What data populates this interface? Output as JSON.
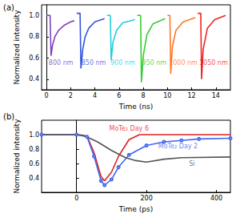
{
  "chart_data": [
    {
      "type": "line",
      "panel_label": "(a)",
      "xlabel": "Time (ns)",
      "ylabel": "Normalized intensity",
      "xlim": [
        -0.4,
        15.2
      ],
      "xticks": [
        0,
        2,
        4,
        6,
        8,
        10,
        12,
        14
      ],
      "ylim": [
        0.3,
        1.1
      ],
      "yticks": [
        0.4,
        0.6,
        0.8,
        {
          "value": 1,
          "label": "1.0"
        }
      ],
      "grid": false,
      "series": [
        {
          "name": "800 nm",
          "color": "#8040c0",
          "label_at": [
            1.2,
            0.55
          ],
          "x": [
            0,
            0.3,
            0.38,
            0.5,
            0.7,
            1.0,
            1.5,
            2.0,
            2.3
          ],
          "values": [
            1.0,
            1.0,
            0.62,
            0.72,
            0.8,
            0.86,
            0.91,
            0.94,
            0.95
          ]
        },
        {
          "name": "850 nm",
          "color": "#3355dd",
          "label_at": [
            3.9,
            0.55
          ],
          "x": [
            2.5,
            2.78,
            2.85,
            3.0,
            3.2,
            3.5,
            4.0,
            4.8
          ],
          "values": [
            1.02,
            1.02,
            0.5,
            0.68,
            0.8,
            0.88,
            0.94,
            0.97
          ]
        },
        {
          "name": "900 nm",
          "color": "#22ccdd",
          "label_at": [
            6.3,
            0.55
          ],
          "x": [
            5.0,
            5.28,
            5.35,
            5.5,
            5.8,
            6.3,
            7.3
          ],
          "values": [
            1.0,
            1.0,
            0.58,
            0.75,
            0.86,
            0.93,
            0.96
          ]
        },
        {
          "name": "950 nm",
          "color": "#33cc33",
          "label_at": [
            8.9,
            0.55
          ],
          "x": [
            7.5,
            7.78,
            7.85,
            8.0,
            8.3,
            8.8,
            9.8
          ],
          "values": [
            1.0,
            1.0,
            0.37,
            0.62,
            0.82,
            0.92,
            0.97
          ]
        },
        {
          "name": "1000 nm",
          "color": "#ff7722",
          "label_at": [
            11.3,
            0.55
          ],
          "x": [
            10.0,
            10.2,
            10.27,
            10.4,
            10.7,
            11.3,
            12.3
          ],
          "values": [
            1.0,
            1.0,
            0.45,
            0.7,
            0.86,
            0.94,
            0.98
          ]
        },
        {
          "name": "1050 nm",
          "color": "#ee2222",
          "label_at": [
            13.8,
            0.55
          ],
          "x": [
            12.5,
            12.75,
            12.82,
            12.95,
            13.3,
            13.9,
            14.8
          ],
          "values": [
            1.02,
            1.02,
            0.4,
            0.68,
            0.88,
            0.96,
            1.0
          ]
        }
      ]
    },
    {
      "type": "line",
      "panel_label": "(b)",
      "xlabel": "Time (ps)",
      "ylabel": "Normalized intensity",
      "xlim": [
        -100,
        440
      ],
      "xticks": [
        0,
        200,
        400
      ],
      "ylim": [
        0.2,
        1.2
      ],
      "yticks": [
        0.4,
        0.6,
        0.8,
        {
          "value": 1,
          "label": "1.0"
        }
      ],
      "grid": false,
      "series": [
        {
          "name": "MoTe₂ Day 6",
          "color": "#e02020",
          "label_at": [
            150,
            1.08
          ],
          "x": [
            -100,
            0,
            30,
            50,
            70,
            80,
            100,
            120,
            150,
            180,
            250,
            440
          ],
          "values": [
            1.0,
            1.0,
            0.98,
            0.75,
            0.42,
            0.36,
            0.48,
            0.7,
            0.93,
            1.0,
            1.0,
            1.0
          ]
        },
        {
          "name": "MoTe₂ Day 2",
          "color": "#4466ee",
          "marker": "circle",
          "label_at": [
            290,
            0.84
          ],
          "x": [
            -100,
            0,
            30,
            50,
            70,
            80,
            100,
            120,
            150,
            200,
            250,
            300,
            350,
            440
          ],
          "values": [
            1.0,
            1.0,
            0.97,
            0.7,
            0.36,
            0.3,
            0.38,
            0.55,
            0.72,
            0.85,
            0.9,
            0.92,
            0.94,
            0.95
          ]
        },
        {
          "name": "Si",
          "color": "#555555",
          "label_at": [
            330,
            0.6
          ],
          "x": [
            -100,
            0,
            20,
            60,
            100,
            140,
            170,
            200,
            250,
            300,
            440
          ],
          "values": [
            1.0,
            1.0,
            0.99,
            0.9,
            0.78,
            0.68,
            0.64,
            0.62,
            0.66,
            0.68,
            0.69
          ]
        }
      ]
    }
  ]
}
